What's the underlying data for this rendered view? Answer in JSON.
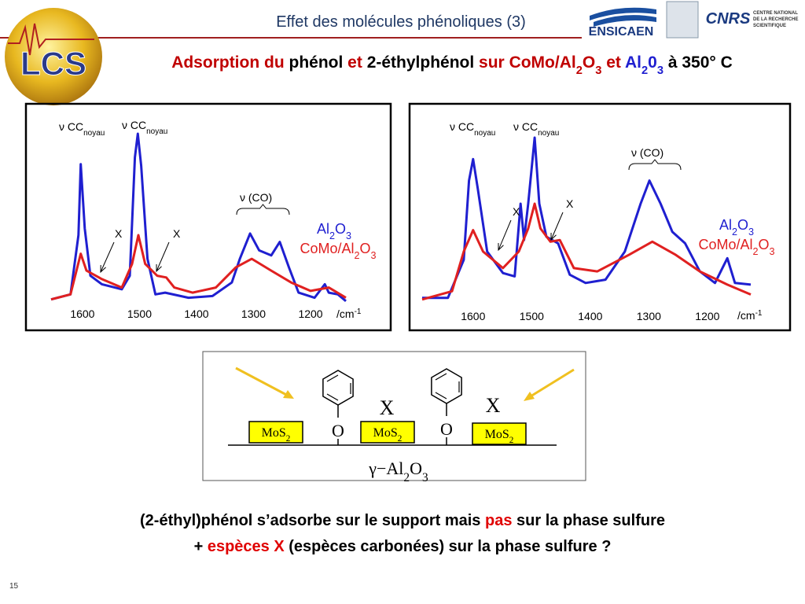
{
  "header": {
    "title": "Effet des molécules phénoliques (3)",
    "subtitle": [
      {
        "text": "Adsorption du ",
        "color": "#c00000"
      },
      {
        "text": "phénol ",
        "color": "#000000"
      },
      {
        "text": "et ",
        "color": "#c00000"
      },
      {
        "text": "2-éthylphénol ",
        "color": "#000000"
      },
      {
        "text": "sur ",
        "color": "#c00000"
      },
      {
        "text": "CoMo/Al",
        "color": "#c00000"
      },
      {
        "text": "2",
        "color": "#c00000",
        "sub": true
      },
      {
        "text": "O",
        "color": "#c00000"
      },
      {
        "text": "3",
        "color": "#c00000",
        "sub": true
      },
      {
        "text": " et ",
        "color": "#c00000"
      },
      {
        "text": "Al",
        "color": "#1f1fd0"
      },
      {
        "text": "2",
        "color": "#1f1fd0",
        "sub": true
      },
      {
        "text": "0",
        "color": "#1f1fd0"
      },
      {
        "text": "3",
        "color": "#1f1fd0",
        "sub": true
      },
      {
        "text": " à 350°  C",
        "color": "#000000"
      }
    ],
    "logos": {
      "lcs": "LCS",
      "ensicaen": "ENSICAEN",
      "cnrs": "CNRS",
      "cnrs_text": [
        "CENTRE NATIONAL",
        "DE LA RECHERCHE",
        "SCIENTIFIQUE"
      ]
    }
  },
  "chart_data": [
    {
      "type": "line",
      "xlim": [
        1655,
        1138
      ],
      "ylim": [
        0,
        100
      ],
      "xticks": [
        1600,
        1500,
        1400,
        1300,
        1200
      ],
      "xlabel": {
        "text": "/cm",
        "sup": "-1"
      },
      "series": [
        {
          "name": "Al2O3",
          "color": "#1f1fd0",
          "x": [
            1655,
            1621,
            1607,
            1603,
            1596,
            1586,
            1566,
            1531,
            1517,
            1508,
            1503,
            1497,
            1486,
            1472,
            1455,
            1414,
            1372,
            1338,
            1324,
            1306,
            1290,
            1269,
            1254,
            1238,
            1221,
            1193,
            1175,
            1168,
            1152,
            1138
          ],
          "values": [
            2,
            5,
            40,
            82,
            44,
            16,
            11,
            8,
            16,
            86,
            100,
            81,
            26,
            5,
            6,
            3,
            4,
            12,
            26,
            41,
            31,
            28,
            36,
            21,
            6,
            3,
            11,
            6,
            5,
            1
          ]
        },
        {
          "name": "CoMo/Al2O3",
          "color": "#e02020",
          "x": [
            1655,
            1621,
            1603,
            1593,
            1566,
            1531,
            1513,
            1502,
            1490,
            1469,
            1453,
            1439,
            1407,
            1366,
            1331,
            1303,
            1269,
            1234,
            1200,
            1168,
            1138
          ],
          "values": [
            2,
            5,
            29,
            19,
            14,
            9,
            23,
            40,
            23,
            16,
            15,
            9,
            6,
            9,
            21,
            26,
            19,
            12,
            7,
            9,
            3
          ]
        }
      ],
      "annotations": [
        {
          "text": "ν CC",
          "sub": "noyau"
        },
        {
          "text": "ν CC",
          "sub": "noyau"
        },
        {
          "text": "ν (CO)"
        },
        {
          "text": "X"
        },
        {
          "text": "X"
        }
      ]
    },
    {
      "type": "line",
      "xlim": [
        1687,
        1126
      ],
      "ylim": [
        0,
        100
      ],
      "xticks": [
        1600,
        1500,
        1400,
        1300,
        1200
      ],
      "xlabel": {
        "text": "/cm",
        "sup": "-1"
      },
      "series": [
        {
          "name": "Al2O3",
          "color": "#1f1fd0",
          "x": [
            1687,
            1643,
            1616,
            1607,
            1600,
            1592,
            1576,
            1549,
            1529,
            1519,
            1513,
            1506,
            1495,
            1487,
            1475,
            1455,
            1435,
            1408,
            1374,
            1341,
            1314,
            1299,
            1280,
            1260,
            1238,
            1213,
            1187,
            1166,
            1153,
            1126
          ],
          "values": [
            3,
            3,
            26,
            74,
            87,
            69,
            31,
            18,
            16,
            60,
            38,
            60,
            100,
            60,
            40,
            36,
            17,
            12,
            14,
            31,
            60,
            74,
            60,
            43,
            36,
            19,
            12,
            27,
            12,
            11
          ]
        },
        {
          "name": "CoMo/Al2O3",
          "color": "#e02020",
          "x": [
            1687,
            1636,
            1616,
            1600,
            1583,
            1549,
            1522,
            1506,
            1495,
            1485,
            1468,
            1452,
            1428,
            1388,
            1334,
            1294,
            1254,
            1213,
            1166,
            1126
          ],
          "values": [
            2,
            7,
            31,
            44,
            31,
            21,
            31,
            45,
            60,
            45,
            37,
            38,
            21,
            19,
            29,
            37,
            29,
            19,
            11,
            5
          ]
        }
      ],
      "annotations": [
        {
          "text": "ν CC",
          "sub": "noyau"
        },
        {
          "text": "ν CC",
          "sub": "noyau"
        },
        {
          "text": "ν (CO)"
        },
        {
          "text": "X"
        },
        {
          "text": "X"
        }
      ]
    }
  ],
  "diagram": {
    "sites": [
      "MoS2",
      "MoS2",
      "MoS2"
    ],
    "anchors": [
      "O",
      "O"
    ],
    "species": [
      "X",
      "X"
    ],
    "support": "γ−Al2O3"
  },
  "conclusion": [
    [
      {
        "text": "(2-éthyl)phénol s’adsorbe sur le support mais ",
        "color": "#000000"
      },
      {
        "text": "pas",
        "color": "#e00000"
      },
      {
        "text": " sur la phase sulfure",
        "color": "#000000"
      }
    ],
    [
      {
        "text": "+ ",
        "color": "#000000"
      },
      {
        "text": "espèces X",
        "color": "#e00000"
      },
      {
        "text": " (espèces carbonées) sur la phase sulfure ?",
        "color": "#000000"
      }
    ]
  ],
  "page_number": "15"
}
